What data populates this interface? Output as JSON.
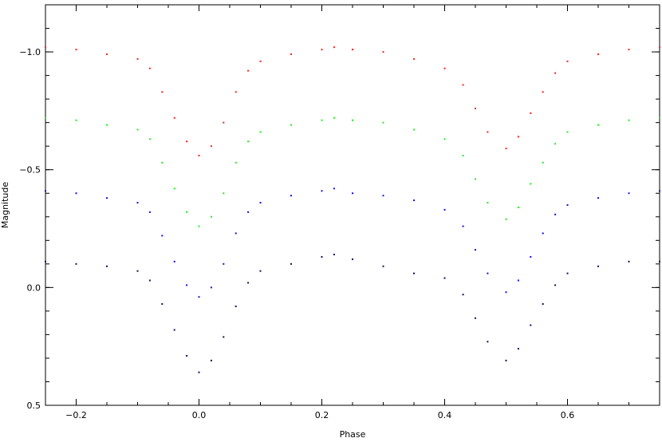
{
  "chart_data": {
    "type": "scatter",
    "title": "",
    "xlabel": "Phase",
    "ylabel": "Magnitude",
    "xlim": [
      -0.25,
      0.75
    ],
    "ylim": [
      0.5,
      -1.2
    ],
    "y_inverted": true,
    "grid": false,
    "legend": "none",
    "x_ticks": [
      -0.2,
      0.0,
      0.2,
      0.4,
      0.6
    ],
    "x_tick_labels": [
      "−0.2",
      "0.0",
      "0.2",
      "0.4",
      "0.6"
    ],
    "y_ticks": [
      -1.0,
      -0.5,
      0.0,
      0.5
    ],
    "y_tick_labels": [
      "−1.0",
      "−0.5",
      "0.0",
      "0.5"
    ],
    "series": [
      {
        "color": "#ff2020",
        "points": [
          [
            -0.25,
            -1.02
          ],
          [
            -0.2,
            -1.01
          ],
          [
            -0.15,
            -0.99
          ],
          [
            -0.1,
            -0.97
          ],
          [
            -0.08,
            -0.93
          ],
          [
            -0.06,
            -0.83
          ],
          [
            -0.04,
            -0.72
          ],
          [
            -0.02,
            -0.62
          ],
          [
            0.0,
            -0.56
          ],
          [
            0.02,
            -0.6
          ],
          [
            0.04,
            -0.7
          ],
          [
            0.06,
            -0.83
          ],
          [
            0.08,
            -0.92
          ],
          [
            0.1,
            -0.96
          ],
          [
            0.15,
            -0.99
          ],
          [
            0.2,
            -1.01
          ],
          [
            0.22,
            -1.02
          ],
          [
            0.25,
            -1.01
          ],
          [
            0.3,
            -1.0
          ],
          [
            0.35,
            -0.97
          ],
          [
            0.4,
            -0.93
          ],
          [
            0.43,
            -0.86
          ],
          [
            0.45,
            -0.76
          ],
          [
            0.47,
            -0.66
          ],
          [
            0.5,
            -0.59
          ],
          [
            0.52,
            -0.64
          ],
          [
            0.54,
            -0.74
          ],
          [
            0.56,
            -0.83
          ],
          [
            0.58,
            -0.91
          ],
          [
            0.6,
            -0.96
          ],
          [
            0.65,
            -0.99
          ],
          [
            0.7,
            -1.01
          ],
          [
            0.75,
            -1.02
          ]
        ]
      },
      {
        "color": "#20ee20",
        "points": [
          [
            -0.25,
            -0.72
          ],
          [
            -0.2,
            -0.71
          ],
          [
            -0.15,
            -0.69
          ],
          [
            -0.1,
            -0.67
          ],
          [
            -0.08,
            -0.63
          ],
          [
            -0.06,
            -0.53
          ],
          [
            -0.04,
            -0.42
          ],
          [
            -0.02,
            -0.32
          ],
          [
            0.0,
            -0.26
          ],
          [
            0.02,
            -0.3
          ],
          [
            0.04,
            -0.4
          ],
          [
            0.06,
            -0.53
          ],
          [
            0.08,
            -0.62
          ],
          [
            0.1,
            -0.66
          ],
          [
            0.15,
            -0.69
          ],
          [
            0.2,
            -0.71
          ],
          [
            0.22,
            -0.72
          ],
          [
            0.25,
            -0.71
          ],
          [
            0.3,
            -0.7
          ],
          [
            0.35,
            -0.67
          ],
          [
            0.4,
            -0.63
          ],
          [
            0.43,
            -0.56
          ],
          [
            0.45,
            -0.46
          ],
          [
            0.47,
            -0.36
          ],
          [
            0.5,
            -0.29
          ],
          [
            0.52,
            -0.34
          ],
          [
            0.54,
            -0.44
          ],
          [
            0.56,
            -0.53
          ],
          [
            0.58,
            -0.61
          ],
          [
            0.6,
            -0.66
          ],
          [
            0.65,
            -0.69
          ],
          [
            0.7,
            -0.71
          ],
          [
            0.75,
            -0.72
          ]
        ]
      },
      {
        "color": "#1010ee",
        "points": [
          [
            -0.25,
            -0.41
          ],
          [
            -0.2,
            -0.4
          ],
          [
            -0.15,
            -0.38
          ],
          [
            -0.1,
            -0.36
          ],
          [
            -0.08,
            -0.32
          ],
          [
            -0.06,
            -0.22
          ],
          [
            -0.04,
            -0.11
          ],
          [
            -0.02,
            -0.01
          ],
          [
            0.0,
            0.04
          ],
          [
            0.02,
            0.0
          ],
          [
            0.04,
            -0.1
          ],
          [
            0.06,
            -0.23
          ],
          [
            0.08,
            -0.32
          ],
          [
            0.1,
            -0.36
          ],
          [
            0.15,
            -0.39
          ],
          [
            0.2,
            -0.41
          ],
          [
            0.22,
            -0.42
          ],
          [
            0.25,
            -0.4
          ],
          [
            0.3,
            -0.39
          ],
          [
            0.35,
            -0.37
          ],
          [
            0.4,
            -0.33
          ],
          [
            0.43,
            -0.26
          ],
          [
            0.45,
            -0.16
          ],
          [
            0.47,
            -0.06
          ],
          [
            0.5,
            0.02
          ],
          [
            0.52,
            -0.03
          ],
          [
            0.54,
            -0.13
          ],
          [
            0.56,
            -0.23
          ],
          [
            0.58,
            -0.31
          ],
          [
            0.6,
            -0.35
          ],
          [
            0.65,
            -0.38
          ],
          [
            0.7,
            -0.4
          ],
          [
            0.75,
            -0.41
          ]
        ]
      },
      {
        "color": "#101060",
        "points": [
          [
            -0.25,
            -0.11
          ],
          [
            -0.2,
            -0.1
          ],
          [
            -0.15,
            -0.09
          ],
          [
            -0.1,
            -0.07
          ],
          [
            -0.08,
            -0.03
          ],
          [
            -0.06,
            0.07
          ],
          [
            -0.04,
            0.18
          ],
          [
            -0.02,
            0.29
          ],
          [
            0.0,
            0.36
          ],
          [
            0.02,
            0.31
          ],
          [
            0.04,
            0.21
          ],
          [
            0.06,
            0.08
          ],
          [
            0.08,
            -0.02
          ],
          [
            0.1,
            -0.07
          ],
          [
            0.15,
            -0.1
          ],
          [
            0.2,
            -0.13
          ],
          [
            0.22,
            -0.14
          ],
          [
            0.25,
            -0.12
          ],
          [
            0.3,
            -0.09
          ],
          [
            0.35,
            -0.06
          ],
          [
            0.4,
            -0.04
          ],
          [
            0.43,
            0.03
          ],
          [
            0.45,
            0.13
          ],
          [
            0.47,
            0.23
          ],
          [
            0.5,
            0.31
          ],
          [
            0.52,
            0.26
          ],
          [
            0.54,
            0.16
          ],
          [
            0.56,
            0.07
          ],
          [
            0.58,
            -0.01
          ],
          [
            0.6,
            -0.06
          ],
          [
            0.65,
            -0.09
          ],
          [
            0.7,
            -0.11
          ],
          [
            0.75,
            -0.11
          ]
        ]
      }
    ]
  }
}
